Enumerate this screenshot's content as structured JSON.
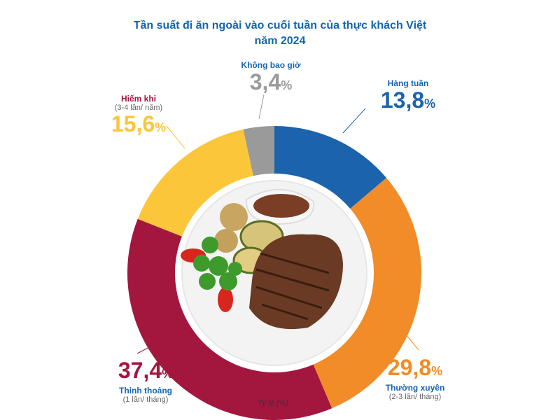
{
  "title_line1": "Tần suất đi ăn ngoài vào cuối tuần của thực khách Việt",
  "title_line2": "năm 2024",
  "note": "Tỷ lệ (%)",
  "chart_data": {
    "type": "pie",
    "variant": "donut",
    "title": "Tần suất đi ăn ngoài vào cuối tuần của thực khách Việt năm 2024",
    "unit": "%",
    "slices": [
      {
        "name": "Hàng tuần",
        "sub": "",
        "value": 13.8,
        "label": "13,8",
        "color": "#1c63ad"
      },
      {
        "name": "Thường xuyên",
        "sub": "(2-3 lần/ tháng)",
        "value": 29.8,
        "label": "29,8",
        "color": "#f28c28"
      },
      {
        "name": "Thỉnh thoảng",
        "sub": "(1 lần/ tháng)",
        "value": 37.4,
        "label": "37,4",
        "color": "#a3173f"
      },
      {
        "name": "Hiếm khi",
        "sub": "(3-4 lần/ năm)",
        "value": 15.6,
        "label": "15,6",
        "color": "#fcc63a"
      },
      {
        "name": "Không bao giờ",
        "sub": "",
        "value": 3.4,
        "label": "3,4",
        "color": "#9a9a9a"
      }
    ],
    "pct_sign": "%"
  }
}
